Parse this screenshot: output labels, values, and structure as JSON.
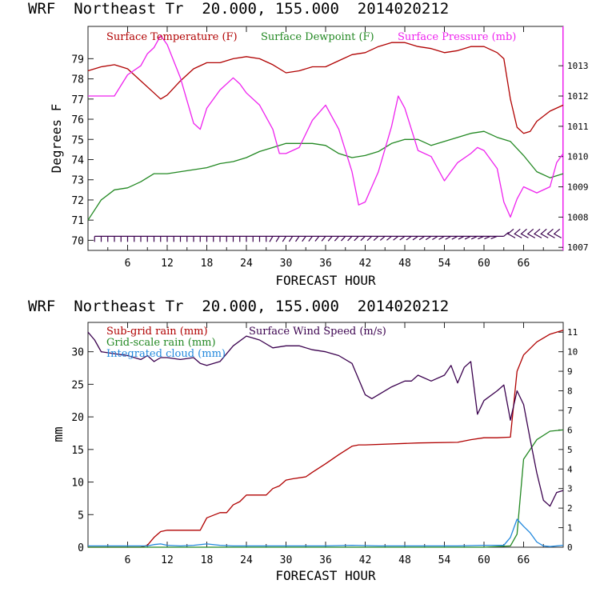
{
  "chart_data": [
    {
      "type": "line",
      "title": "WRF  Northeast Tr  20.000, 155.000  2014020212",
      "xlabel": "FORECAST HOUR",
      "ylabel": "Degrees F",
      "xlim": [
        0,
        72
      ],
      "ylim": [
        69.5,
        80.6
      ],
      "y2lim": [
        1006.9,
        1014.3
      ],
      "xticks": [
        6,
        12,
        18,
        24,
        30,
        36,
        42,
        48,
        54,
        60,
        66
      ],
      "xtick_labels": [
        "6",
        "12",
        "18",
        "24",
        "30",
        "36",
        "42",
        "48",
        "54",
        "60",
        "66"
      ],
      "yticks": [
        70,
        71,
        72,
        73,
        74,
        75,
        76,
        77,
        78,
        79
      ],
      "ytick_labels": [
        "70",
        "71",
        "72",
        "73",
        "74",
        "75",
        "76",
        "77",
        "78",
        "79"
      ],
      "y2ticks": [
        1007,
        1008,
        1009,
        1010,
        1011,
        1012,
        1013
      ],
      "y2tick_labels": [
        "1007",
        "1008",
        "1009",
        "1010",
        "1011",
        "1012",
        "1013"
      ],
      "legend": "top-left",
      "grid": false,
      "wind_barbs": {
        "x": [
          1,
          2,
          3,
          4,
          5,
          6,
          7,
          8,
          9,
          10,
          11,
          12,
          13,
          14,
          15,
          16,
          17,
          18,
          19,
          20,
          21,
          22,
          23,
          24,
          25,
          26,
          27,
          28,
          29,
          30,
          31,
          32,
          33,
          34,
          35,
          36,
          37,
          38,
          39,
          40,
          41,
          42,
          43,
          44,
          45,
          46,
          47,
          48,
          49,
          50,
          51,
          52,
          53,
          54,
          55,
          56,
          57,
          58,
          59,
          60,
          61,
          62,
          63,
          64,
          65,
          66,
          67,
          68,
          69,
          70,
          71
        ],
        "y": 70.2,
        "color": "#3a004e"
      },
      "series": [
        {
          "name": "Surface Temperature (F)",
          "color": "#b00000",
          "axis": "left",
          "x": [
            0,
            2,
            4,
            6,
            8,
            10,
            11,
            12,
            14,
            16,
            18,
            20,
            22,
            24,
            26,
            28,
            30,
            32,
            34,
            36,
            38,
            40,
            42,
            44,
            46,
            48,
            50,
            52,
            54,
            56,
            58,
            60,
            62,
            63,
            64,
            65,
            66,
            67,
            68,
            70,
            72
          ],
          "y": [
            78.4,
            78.6,
            78.7,
            78.5,
            77.9,
            77.3,
            77.0,
            77.2,
            77.9,
            78.5,
            78.8,
            78.8,
            79.0,
            79.1,
            79.0,
            78.7,
            78.3,
            78.4,
            78.6,
            78.6,
            78.9,
            79.2,
            79.3,
            79.6,
            79.8,
            79.8,
            79.6,
            79.5,
            79.3,
            79.4,
            79.6,
            79.6,
            79.3,
            79.0,
            77.0,
            75.6,
            75.3,
            75.4,
            75.9,
            76.4,
            76.7
          ]
        },
        {
          "name": "Surface Dewpoint (F)",
          "color": "#228822",
          "axis": "left",
          "x": [
            0,
            2,
            4,
            6,
            8,
            10,
            12,
            14,
            16,
            18,
            20,
            22,
            24,
            26,
            28,
            30,
            32,
            34,
            36,
            38,
            40,
            42,
            44,
            46,
            48,
            50,
            52,
            54,
            56,
            58,
            60,
            62,
            64,
            66,
            68,
            70,
            72
          ],
          "y": [
            71.0,
            72.0,
            72.5,
            72.6,
            72.9,
            73.3,
            73.3,
            73.4,
            73.5,
            73.6,
            73.8,
            73.9,
            74.1,
            74.4,
            74.6,
            74.8,
            74.8,
            74.8,
            74.7,
            74.3,
            74.1,
            74.2,
            74.4,
            74.8,
            75.0,
            75.0,
            74.7,
            74.9,
            75.1,
            75.3,
            75.4,
            75.1,
            74.9,
            74.2,
            73.4,
            73.1,
            73.3
          ]
        },
        {
          "name": "Surface Pressure (mb)",
          "color": "#ee22ee",
          "axis": "right",
          "x": [
            0,
            2,
            4,
            6,
            8,
            9,
            10,
            11,
            12,
            14,
            16,
            17,
            18,
            20,
            22,
            23,
            24,
            26,
            28,
            29,
            30,
            32,
            34,
            36,
            38,
            40,
            41,
            42,
            44,
            46,
            47,
            48,
            50,
            52,
            54,
            56,
            58,
            59,
            60,
            62,
            63,
            64,
            65,
            66,
            68,
            70,
            71,
            72
          ],
          "y": [
            1012.0,
            1012.0,
            1012.0,
            1012.7,
            1013.0,
            1013.4,
            1013.6,
            1014.0,
            1013.7,
            1012.6,
            1011.1,
            1010.9,
            1011.6,
            1012.2,
            1012.6,
            1012.4,
            1012.1,
            1011.7,
            1010.9,
            1010.1,
            1010.1,
            1010.3,
            1011.2,
            1011.7,
            1010.9,
            1009.5,
            1008.4,
            1008.5,
            1009.5,
            1011.0,
            1012.0,
            1011.6,
            1010.2,
            1010.0,
            1009.2,
            1009.8,
            1010.1,
            1010.3,
            1010.2,
            1009.6,
            1008.5,
            1008.0,
            1008.6,
            1009.0,
            1008.8,
            1009.0,
            1009.8,
            1010.1
          ]
        }
      ]
    },
    {
      "type": "line",
      "title": "WRF  Northeast Tr  20.000, 155.000  2014020212",
      "xlabel": "FORECAST HOUR",
      "ylabel": "mm",
      "xlim": [
        0,
        72
      ],
      "ylim": [
        0,
        34.5
      ],
      "y2lim": [
        0,
        11.5
      ],
      "xticks": [
        6,
        12,
        18,
        24,
        30,
        36,
        42,
        48,
        54,
        60,
        66
      ],
      "xtick_labels": [
        "6",
        "12",
        "18",
        "24",
        "30",
        "36",
        "42",
        "48",
        "54",
        "60",
        "66"
      ],
      "yticks": [
        0,
        5,
        10,
        15,
        20,
        25,
        30
      ],
      "ytick_labels": [
        "0",
        "5",
        "10",
        "15",
        "20",
        "25",
        "30"
      ],
      "y2ticks": [
        0,
        1,
        2,
        3,
        4,
        5,
        6,
        7,
        8,
        9,
        10,
        11
      ],
      "y2tick_labels": [
        "0",
        "1",
        "2",
        "3",
        "4",
        "5",
        "6",
        "7",
        "8",
        "9",
        "10",
        "11"
      ],
      "legend": "top-left",
      "grid": false,
      "series": [
        {
          "name": "Sub-grid rain (mm)",
          "color": "#b00000",
          "axis": "left",
          "x": [
            0,
            6,
            8,
            9,
            10,
            11,
            12,
            17,
            18,
            20,
            21,
            22,
            23,
            24,
            27,
            28,
            29,
            30,
            31,
            33,
            34,
            36,
            38,
            40,
            41,
            42,
            50,
            56,
            58,
            60,
            62,
            64,
            65,
            66,
            68,
            70,
            72
          ],
          "y": [
            0,
            0,
            0,
            0.3,
            1.5,
            2.4,
            2.6,
            2.6,
            4.5,
            5.3,
            5.3,
            6.5,
            7.0,
            8.0,
            8.0,
            9.0,
            9.4,
            10.3,
            10.5,
            10.8,
            11.5,
            12.8,
            14.2,
            15.5,
            15.7,
            15.7,
            16.0,
            16.1,
            16.5,
            16.8,
            16.8,
            16.9,
            27.0,
            29.5,
            31.5,
            32.7,
            33.3
          ]
        },
        {
          "name": "Grid-scale rain (mm)",
          "color": "#228822",
          "axis": "left",
          "x": [
            0,
            20,
            40,
            60,
            64,
            65,
            66,
            68,
            70,
            72
          ],
          "y": [
            0,
            0,
            0,
            0,
            0.2,
            2.0,
            13.5,
            16.5,
            17.8,
            18.0
          ]
        },
        {
          "name": "Integrated cloud (mm)",
          "color": "#2288dd",
          "axis": "left",
          "x": [
            0,
            9,
            10,
            11,
            12,
            14,
            16,
            18,
            20,
            22,
            24,
            30,
            36,
            40,
            44,
            48,
            52,
            56,
            60,
            63,
            64,
            65,
            66,
            67,
            68,
            69,
            70,
            72
          ],
          "y": [
            0.2,
            0.2,
            0.4,
            0.5,
            0.3,
            0.2,
            0.3,
            0.5,
            0.3,
            0.2,
            0.2,
            0.2,
            0.2,
            0.3,
            0.2,
            0.2,
            0.2,
            0.2,
            0.3,
            0.3,
            1.5,
            4.3,
            3.2,
            2.2,
            0.8,
            0.2,
            0.1,
            0.3
          ]
        },
        {
          "name": "Surface Wind Speed (m/s)",
          "color": "#3a004e",
          "axis": "right",
          "x": [
            0,
            1,
            2,
            4,
            6,
            8,
            9,
            10,
            11,
            12,
            14,
            16,
            17,
            18,
            20,
            22,
            24,
            26,
            28,
            30,
            32,
            34,
            36,
            38,
            40,
            42,
            43,
            44,
            46,
            48,
            49,
            50,
            52,
            54,
            55,
            56,
            57,
            58,
            59,
            60,
            62,
            63,
            64,
            65,
            66,
            67,
            68,
            69,
            70,
            71,
            72
          ],
          "y": [
            11.0,
            10.6,
            10.0,
            9.9,
            9.8,
            9.6,
            9.8,
            9.5,
            9.7,
            9.7,
            9.6,
            9.7,
            9.4,
            9.3,
            9.5,
            10.3,
            10.8,
            10.6,
            10.2,
            10.3,
            10.3,
            10.1,
            10.0,
            9.8,
            9.4,
            7.8,
            7.6,
            7.8,
            8.2,
            8.5,
            8.5,
            8.8,
            8.5,
            8.8,
            9.3,
            8.4,
            9.2,
            9.5,
            6.8,
            7.5,
            8.0,
            8.3,
            6.5,
            8.0,
            7.3,
            5.5,
            3.8,
            2.4,
            2.1,
            2.8,
            2.9
          ]
        }
      ]
    }
  ]
}
